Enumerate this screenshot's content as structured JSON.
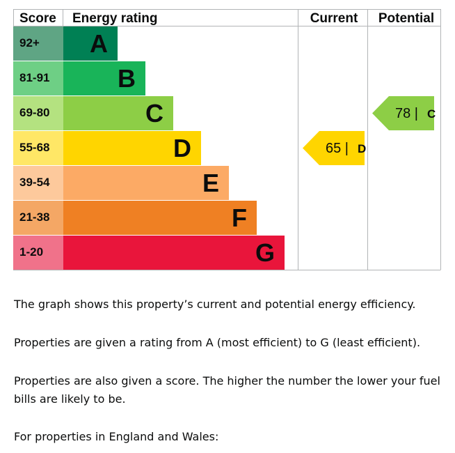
{
  "chart_data": {
    "type": "bar",
    "header": {
      "score": "Score",
      "rating": "Energy rating",
      "current": "Current",
      "potential": "Potential"
    },
    "bands": [
      {
        "band": "A",
        "score_range": "92+",
        "color": "#008054",
        "score_bg": "#5fa584"
      },
      {
        "band": "B",
        "score_range": "81-91",
        "color": "#19b459",
        "score_bg": "#6ecf85"
      },
      {
        "band": "C",
        "score_range": "69-80",
        "color": "#8dce46",
        "score_bg": "#b4e280"
      },
      {
        "band": "D",
        "score_range": "55-68",
        "color": "#ffd500",
        "score_bg": "#ffe766"
      },
      {
        "band": "E",
        "score_range": "39-54",
        "color": "#fcaa65",
        "score_bg": "#fdc99c"
      },
      {
        "band": "F",
        "score_range": "21-38",
        "color": "#ef8023",
        "score_bg": "#f4a765"
      },
      {
        "band": "G",
        "score_range": "1-20",
        "color": "#e9153b",
        "score_bg": "#f0728a"
      }
    ],
    "current": {
      "score": 65,
      "band": "D",
      "label": "65 | D"
    },
    "potential": {
      "score": 78,
      "band": "C",
      "label": "78 | C"
    }
  },
  "text": {
    "p1": "The graph shows this property’s current and potential energy efficiency.",
    "p2": "Properties are given a rating from A (most efficient) to G (least efficient).",
    "p3": "Properties are also given a score. The higher the number the lower your fuel bills are likely to be.",
    "p4": "For properties in England and Wales:"
  }
}
